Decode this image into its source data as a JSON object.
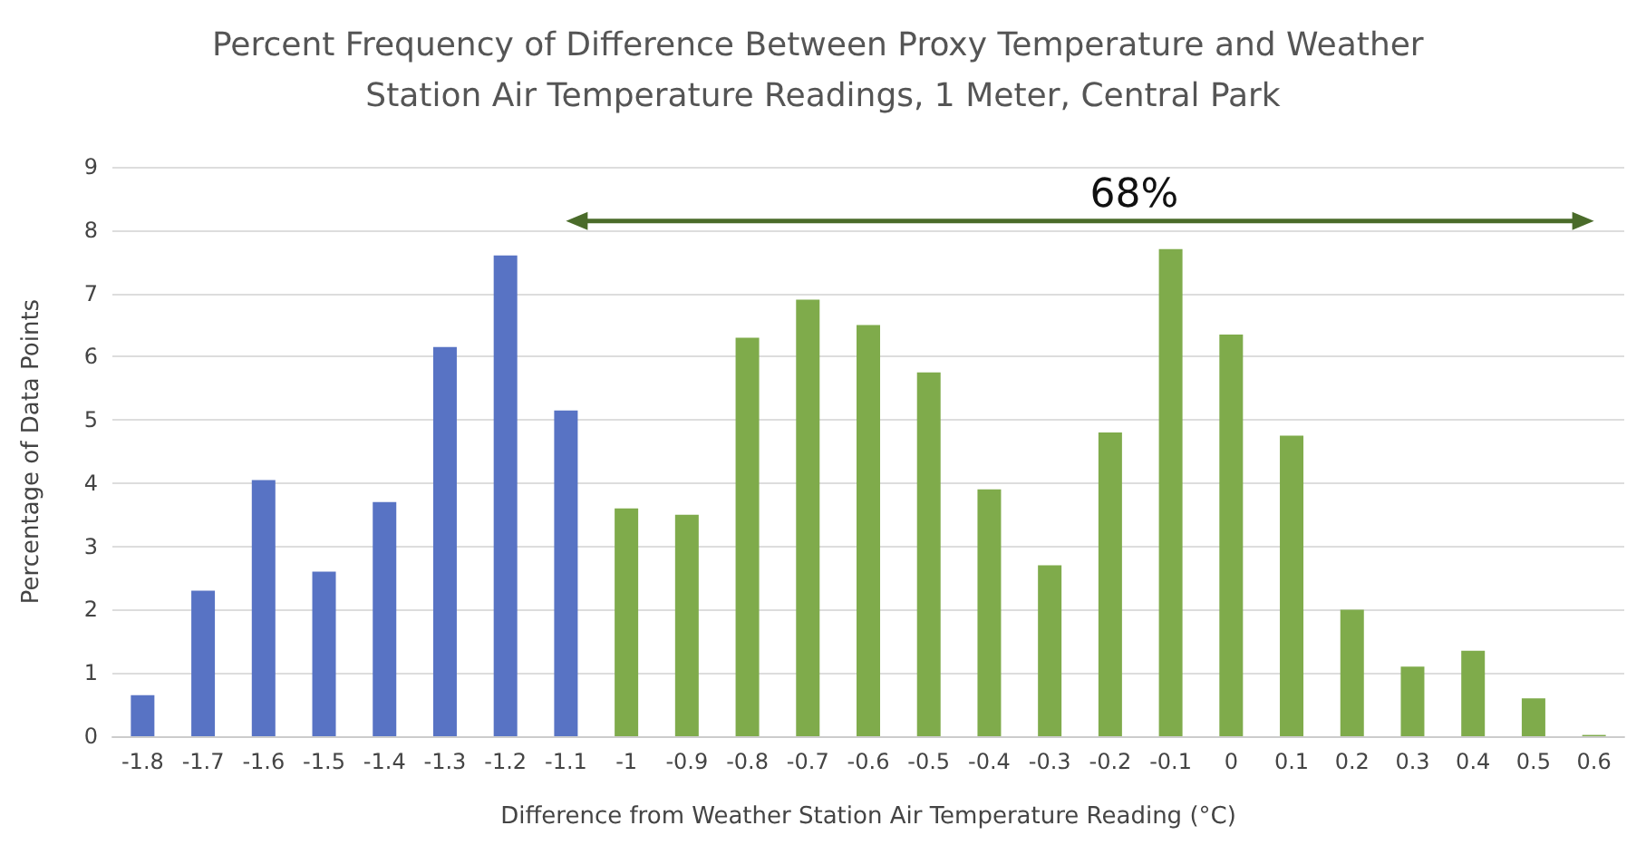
{
  "chart_data": {
    "type": "bar",
    "title": "Percent Frequency of Difference Between Proxy Temperature and Weather Station Air Temperature Readings, 1 Meter, Central Park",
    "xlabel": "Difference from Weather Station Air Temperature Reading (°C)",
    "ylabel": "Percentage of Data Points",
    "categories": [
      "-1.8",
      "-1.7",
      "-1.6",
      "-1.5",
      "-1.4",
      "-1.3",
      "-1.2",
      "-1.1",
      "-1",
      "-0.9",
      "-0.8",
      "-0.7",
      "-0.6",
      "-0.5",
      "-0.4",
      "-0.3",
      "-0.2",
      "-0.1",
      "0",
      "0.1",
      "0.2",
      "0.3",
      "0.4",
      "0.5",
      "0.6"
    ],
    "values": [
      0.65,
      2.3,
      4.05,
      2.6,
      3.7,
      6.15,
      7.6,
      5.15,
      3.6,
      3.5,
      6.3,
      6.9,
      6.5,
      5.75,
      3.9,
      2.7,
      4.8,
      7.7,
      6.35,
      4.75,
      2.0,
      1.1,
      1.35,
      0.6,
      0.02
    ],
    "colors": [
      "#5873c4",
      "#5873c4",
      "#5873c4",
      "#5873c4",
      "#5873c4",
      "#5873c4",
      "#5873c4",
      "#5873c4",
      "#7fab4b",
      "#7fab4b",
      "#7fab4b",
      "#7fab4b",
      "#7fab4b",
      "#7fab4b",
      "#7fab4b",
      "#7fab4b",
      "#7fab4b",
      "#7fab4b",
      "#7fab4b",
      "#7fab4b",
      "#7fab4b",
      "#7fab4b",
      "#7fab4b",
      "#7fab4b",
      "#7fab4b"
    ],
    "ylim": [
      0,
      9
    ],
    "yticks": [
      0,
      1,
      2,
      3,
      4,
      5,
      6,
      7,
      8,
      9
    ],
    "grid": "y",
    "annotations": [
      "68%"
    ]
  }
}
